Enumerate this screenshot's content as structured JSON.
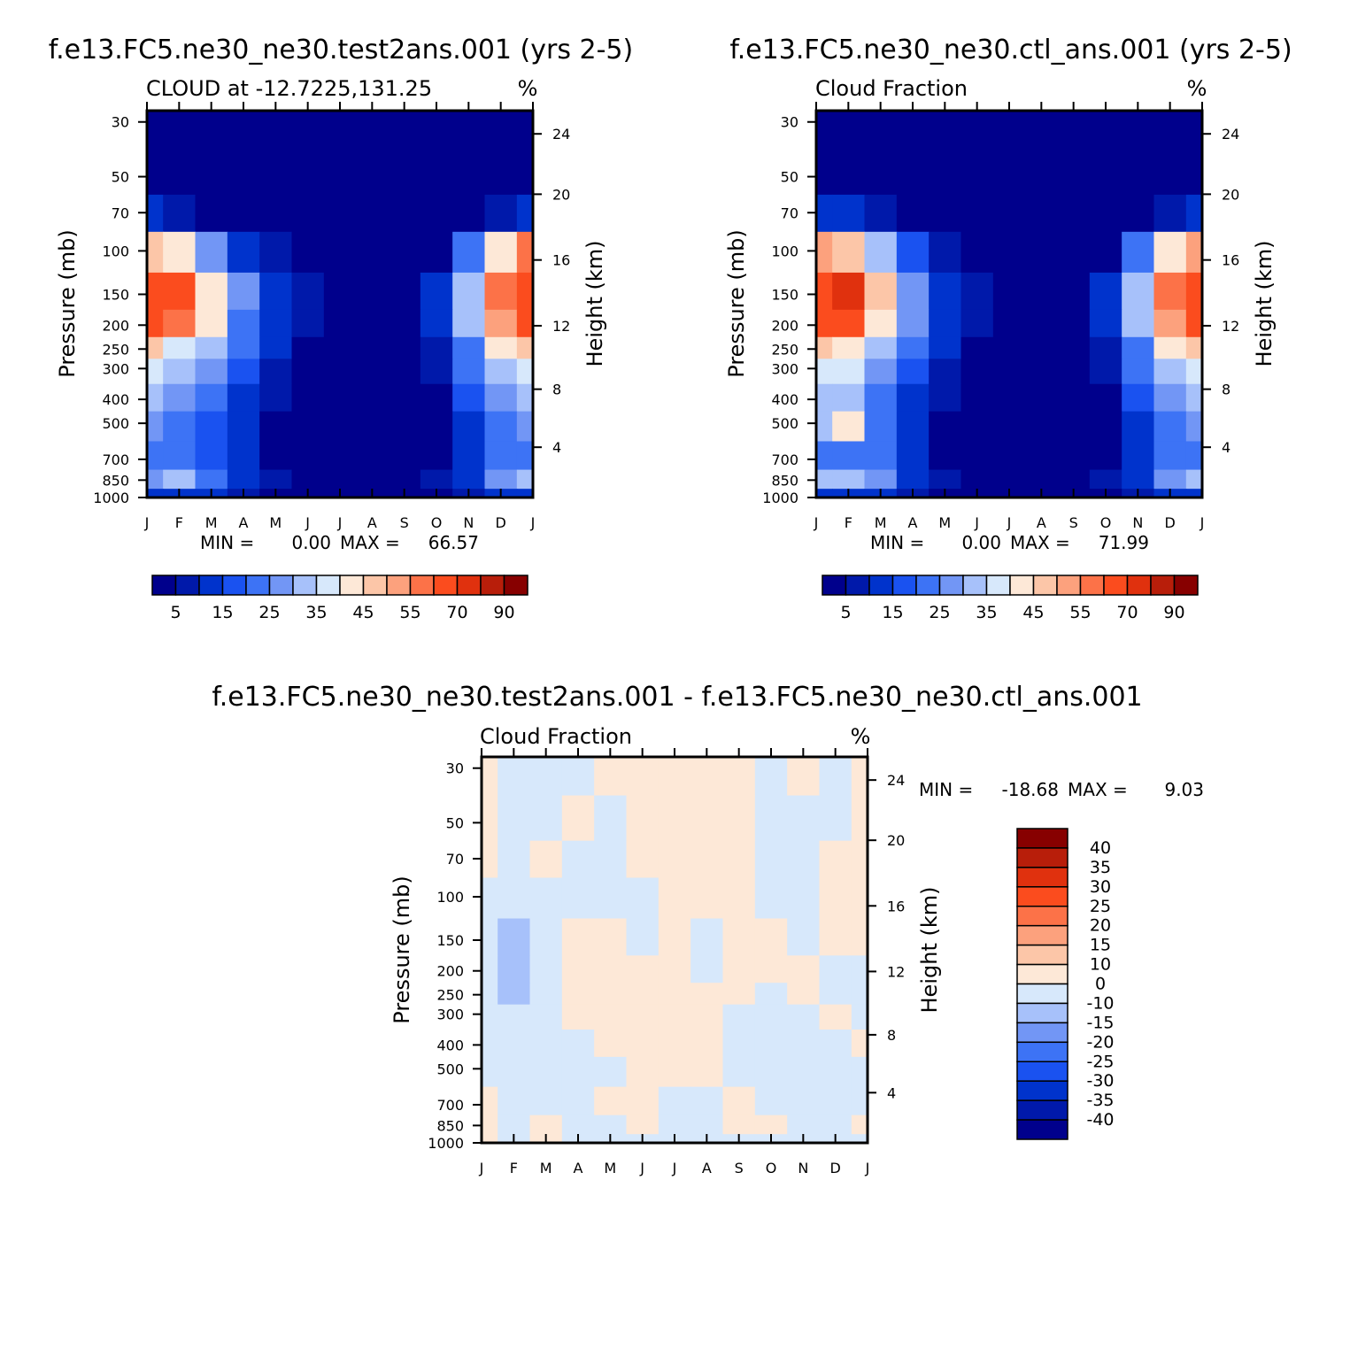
{
  "colors": {
    "levels": [
      "#00008c",
      "#0019aa",
      "#0033cc",
      "#1a52f0",
      "#3d73f5",
      "#7296f5",
      "#a7c1fa",
      "#d7e8fb",
      "#fde8d7",
      "#fcc6a8",
      "#fca17d",
      "#fc7248",
      "#fb4c1e",
      "#e0310e",
      "#b81e0a",
      "#870000"
    ],
    "diff_levels": [
      "#00008c",
      "#0019aa",
      "#0033cc",
      "#1a52f0",
      "#3d73f5",
      "#7296f5",
      "#a7c1fa",
      "#d7e8fb",
      "#fde8d7",
      "#fcc6a8",
      "#fca17d",
      "#fc7248",
      "#fb4c1e",
      "#e0310e",
      "#b81e0a",
      "#870000"
    ]
  },
  "chart_data": [
    {
      "type": "heatmap",
      "title": "f.e13.FC5.ne30_ne30.test2ans.001 (yrs 2-5)",
      "subtitle": "CLOUD at -12.7225,131.25",
      "units": "%",
      "xlabel": "",
      "ylabel": "Pressure (mb)",
      "y2label": "Height (km)",
      "x": [
        "J",
        "F",
        "M",
        "A",
        "M",
        "J",
        "J",
        "A",
        "S",
        "O",
        "N",
        "D",
        "J"
      ],
      "y": [
        "30",
        "50",
        "70",
        "100",
        "150",
        "200",
        "250",
        "300",
        "400",
        "500",
        "700",
        "850",
        "1000"
      ],
      "y2": [
        "24",
        "20",
        "16",
        "12",
        "8",
        "4"
      ],
      "stats": {
        "min_label": "MIN =",
        "min": "0.00",
        "max_label": "MAX =",
        "max": "66.57"
      },
      "colorbar": [
        "5",
        "15",
        "25",
        "35",
        "45",
        "55",
        "70",
        "90"
      ],
      "values": [
        [
          0,
          0,
          0,
          0,
          0,
          0,
          0,
          0,
          0,
          0,
          0,
          0,
          0
        ],
        [
          0,
          0,
          0,
          0,
          0,
          0,
          0,
          0,
          0,
          0,
          0,
          0,
          0
        ],
        [
          12,
          8,
          4,
          0,
          0,
          0,
          0,
          0,
          0,
          0,
          3,
          8,
          12
        ],
        [
          48,
          42,
          28,
          14,
          7,
          3,
          1,
          1,
          1,
          4,
          22,
          42,
          55
        ],
        [
          64,
          60,
          44,
          26,
          14,
          8,
          3,
          2,
          4,
          10,
          32,
          55,
          66
        ],
        [
          62,
          55,
          40,
          24,
          14,
          6,
          2,
          1,
          2,
          10,
          30,
          52,
          64
        ],
        [
          45,
          38,
          30,
          20,
          10,
          3,
          1,
          0,
          1,
          8,
          24,
          40,
          48
        ],
        [
          36,
          32,
          26,
          18,
          8,
          2,
          0,
          0,
          0,
          6,
          20,
          34,
          38
        ],
        [
          30,
          26,
          22,
          14,
          5,
          0,
          0,
          0,
          0,
          4,
          16,
          28,
          32
        ],
        [
          26,
          22,
          18,
          12,
          4,
          0,
          0,
          0,
          0,
          4,
          14,
          24,
          28
        ],
        [
          20,
          24,
          18,
          10,
          3,
          0,
          0,
          0,
          0,
          3,
          12,
          22,
          24
        ],
        [
          28,
          30,
          24,
          14,
          6,
          2,
          0,
          0,
          1,
          5,
          14,
          26,
          30
        ],
        [
          10,
          12,
          10,
          6,
          2,
          0,
          0,
          0,
          0,
          2,
          8,
          12,
          12
        ]
      ]
    },
    {
      "type": "heatmap",
      "title": "f.e13.FC5.ne30_ne30.ctl_ans.001 (yrs 2-5)",
      "subtitle": "Cloud Fraction",
      "units": "%",
      "xlabel": "",
      "ylabel": "Pressure (mb)",
      "y2label": "Height (km)",
      "x": [
        "J",
        "F",
        "M",
        "A",
        "M",
        "J",
        "J",
        "A",
        "S",
        "O",
        "N",
        "D",
        "J"
      ],
      "y": [
        "30",
        "50",
        "70",
        "100",
        "150",
        "200",
        "250",
        "300",
        "400",
        "500",
        "700",
        "850",
        "1000"
      ],
      "y2": [
        "24",
        "20",
        "16",
        "12",
        "8",
        "4"
      ],
      "stats": {
        "min_label": "MIN =",
        "min": "0.00",
        "max_label": "MAX =",
        "max": "71.99"
      },
      "colorbar": [
        "5",
        "15",
        "25",
        "35",
        "45",
        "55",
        "70",
        "90"
      ],
      "values": [
        [
          0,
          0,
          0,
          0,
          0,
          0,
          0,
          0,
          0,
          0,
          0,
          0,
          0
        ],
        [
          0,
          0,
          0,
          0,
          0,
          0,
          0,
          0,
          0,
          0,
          0,
          0,
          0
        ],
        [
          12,
          10,
          5,
          0,
          0,
          0,
          0,
          0,
          0,
          0,
          3,
          8,
          12
        ],
        [
          50,
          48,
          32,
          16,
          8,
          3,
          1,
          1,
          1,
          4,
          22,
          42,
          54
        ],
        [
          64,
          72,
          48,
          28,
          14,
          8,
          3,
          4,
          4,
          10,
          32,
          55,
          66
        ],
        [
          62,
          62,
          42,
          26,
          14,
          6,
          2,
          1,
          2,
          10,
          30,
          52,
          64
        ],
        [
          46,
          44,
          32,
          20,
          10,
          3,
          1,
          0,
          1,
          8,
          24,
          40,
          48
        ],
        [
          38,
          36,
          28,
          18,
          8,
          2,
          0,
          0,
          0,
          6,
          20,
          34,
          38
        ],
        [
          32,
          30,
          24,
          14,
          5,
          0,
          0,
          0,
          0,
          4,
          16,
          28,
          32
        ],
        [
          30,
          40,
          20,
          12,
          4,
          0,
          0,
          0,
          0,
          4,
          14,
          24,
          28
        ],
        [
          22,
          24,
          20,
          10,
          3,
          0,
          0,
          0,
          0,
          3,
          12,
          22,
          24
        ],
        [
          30,
          32,
          26,
          14,
          6,
          2,
          0,
          0,
          1,
          5,
          14,
          26,
          30
        ],
        [
          10,
          12,
          10,
          6,
          2,
          0,
          0,
          0,
          0,
          2,
          8,
          12,
          12
        ]
      ]
    },
    {
      "type": "heatmap",
      "title": "f.e13.FC5.ne30_ne30.test2ans.001 - f.e13.FC5.ne30_ne30.ctl_ans.001",
      "subtitle": "Cloud Fraction",
      "units": "%",
      "xlabel": "",
      "ylabel": "Pressure (mb)",
      "y2label": "Height (km)",
      "x": [
        "J",
        "F",
        "M",
        "A",
        "M",
        "J",
        "J",
        "A",
        "S",
        "O",
        "N",
        "D",
        "J"
      ],
      "y": [
        "30",
        "50",
        "70",
        "100",
        "150",
        "200",
        "250",
        "300",
        "400",
        "500",
        "700",
        "850",
        "1000"
      ],
      "y2": [
        "24",
        "20",
        "16",
        "12",
        "8",
        "4"
      ],
      "stats": {
        "min_label": "MIN =",
        "min": "-18.68",
        "max_label": "MAX =",
        "max": "9.03"
      },
      "colorbar": [
        "40",
        "35",
        "30",
        "25",
        "20",
        "15",
        "10",
        "0",
        "-10",
        "-15",
        "-20",
        "-25",
        "-30",
        "-35",
        "-40"
      ],
      "values": [
        [
          2,
          -2,
          -2,
          -2,
          2,
          2,
          2,
          2,
          2,
          -2,
          2,
          -2,
          2
        ],
        [
          2,
          -2,
          -2,
          2,
          -2,
          2,
          2,
          2,
          2,
          -2,
          -2,
          -2,
          2
        ],
        [
          2,
          -2,
          2,
          -2,
          -2,
          2,
          2,
          2,
          2,
          -2,
          -2,
          2,
          2
        ],
        [
          -2,
          -2,
          -2,
          -2,
          -2,
          -2,
          2,
          2,
          2,
          -2,
          -2,
          2,
          2
        ],
        [
          -2,
          -15,
          -4,
          2,
          2,
          -2,
          2,
          -4,
          2,
          2,
          -2,
          2,
          2
        ],
        [
          -2,
          -12,
          -4,
          2,
          2,
          2,
          2,
          -3,
          2,
          2,
          2,
          -2,
          -2
        ],
        [
          -2,
          -12,
          -3,
          2,
          2,
          2,
          2,
          2,
          2,
          -2,
          2,
          -2,
          -2
        ],
        [
          -2,
          -10,
          -2,
          2,
          2,
          2,
          2,
          2,
          -2,
          -2,
          -2,
          2,
          -2
        ],
        [
          -2,
          -10,
          -2,
          -2,
          2,
          2,
          2,
          2,
          -2,
          -2,
          -2,
          -2,
          2
        ],
        [
          -2,
          -10,
          -2,
          -2,
          -2,
          2,
          2,
          2,
          -2,
          -2,
          -2,
          -2,
          -2
        ],
        [
          2,
          -2,
          -2,
          -2,
          2,
          2,
          -2,
          -2,
          2,
          -2,
          -2,
          -2,
          -2
        ],
        [
          2,
          -2,
          2,
          -2,
          -2,
          2,
          -2,
          -2,
          2,
          2,
          -2,
          -2,
          2
        ],
        [
          2,
          -2,
          2,
          -2,
          -2,
          -2,
          -2,
          -2,
          -2,
          -2,
          -2,
          -2,
          -2
        ]
      ]
    }
  ]
}
